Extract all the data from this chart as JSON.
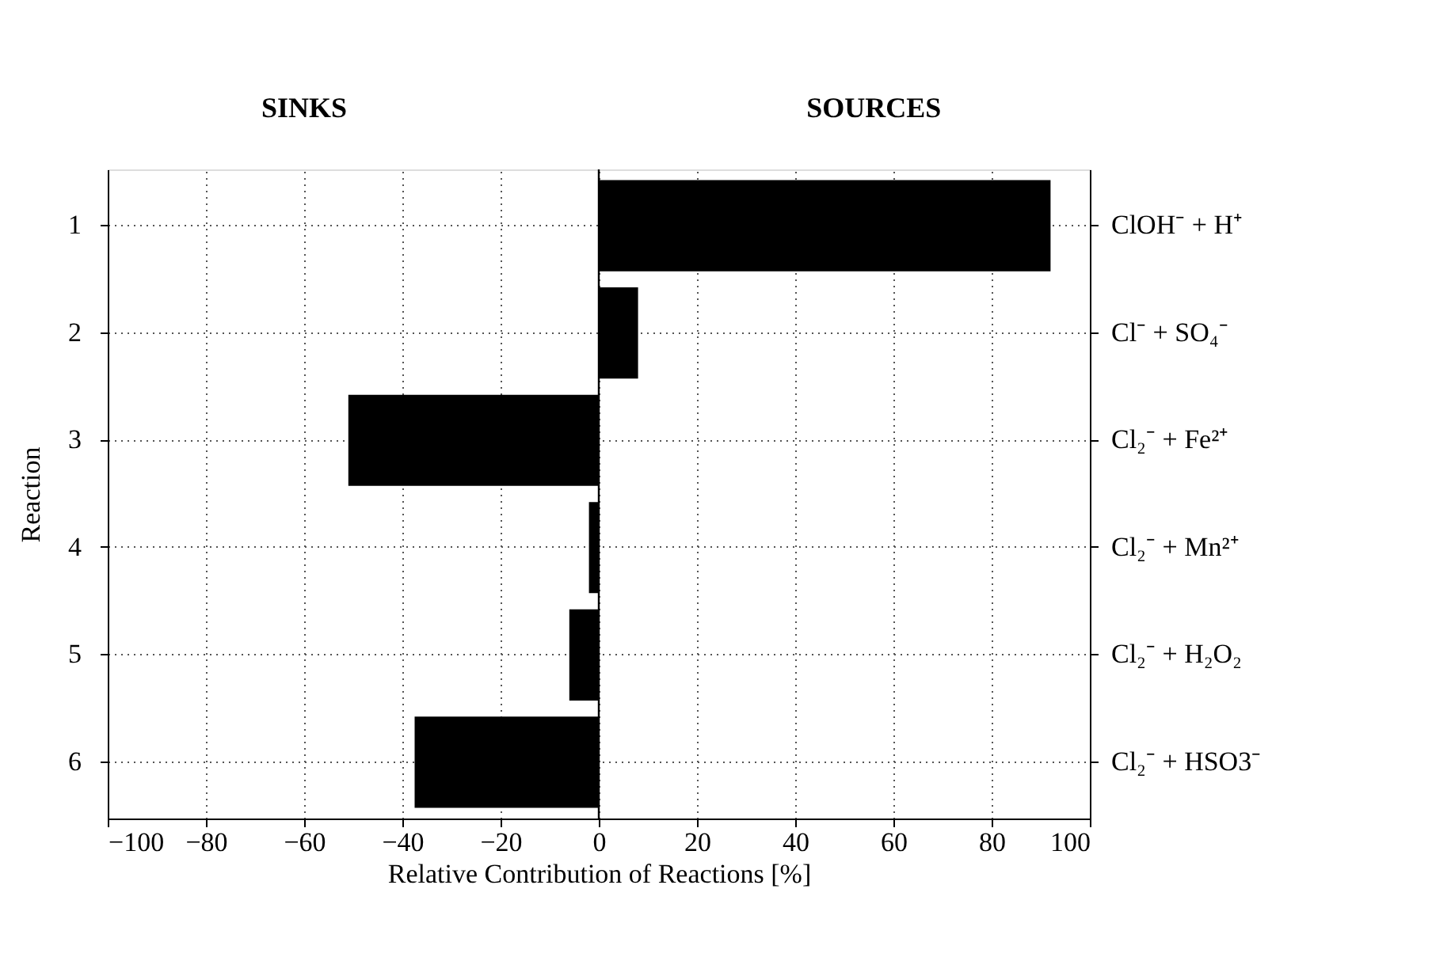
{
  "chart_data": {
    "type": "bar",
    "orientation": "horizontal",
    "xlabel": "Relative Contribution of Reactions [%]",
    "ylabel": "Reaction",
    "categories": [
      "1",
      "2",
      "3",
      "4",
      "5",
      "6"
    ],
    "y2_categories": [
      "ClOH⁻ + H⁺",
      "Cl⁻ + SO₄⁻",
      "Cl₂⁻ + Fe²⁺",
      "Cl₂⁻ + Mn²⁺",
      "Cl₂⁻ + H₂O₂",
      "Cl₂⁻ + HSO3⁻"
    ],
    "values": [
      92,
      8,
      -51,
      -2,
      -6,
      -37.5
    ],
    "color": "#000000",
    "xlim": [
      -100,
      100
    ],
    "xticks": [
      -100,
      -80,
      -60,
      -40,
      -20,
      0,
      20,
      40,
      60,
      80,
      100
    ],
    "grid": true,
    "ref_lines": [
      {
        "axis": "x",
        "value": 0,
        "color": "#000000"
      }
    ],
    "annotations": [
      "SINKS",
      "SOURCES"
    ]
  }
}
